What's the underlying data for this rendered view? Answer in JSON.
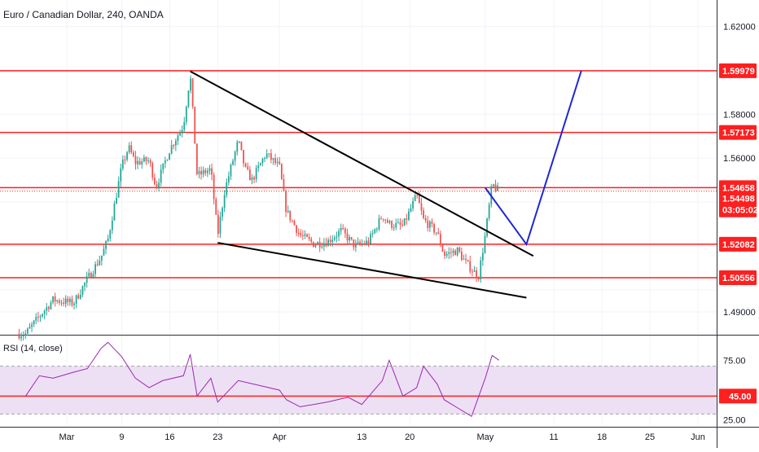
{
  "header": {
    "title": "Euro / Canadian Dollar, 240, OANDA"
  },
  "rsi": {
    "title": "RSI (14, close)"
  },
  "colors": {
    "up": "#26a69a",
    "down": "#ef5350",
    "level": "#ff1f1f",
    "rsi_line": "#9c27b0",
    "rsi_band": "#ede0f5",
    "trend": "#000000",
    "projection": "#1f27d6"
  },
  "chart_data": [
    {
      "type": "candlestick",
      "symbol": "Euro / Canadian Dollar",
      "timeframe": "240",
      "source": "OANDA",
      "x_tick_labels": [
        "Mar",
        "9",
        "16",
        "23",
        "Apr",
        "13",
        "20",
        "May",
        "11",
        "18",
        "25",
        "Jun"
      ],
      "price_tick_labels": [
        "1.62000",
        "1.58000",
        "1.56000",
        "1.49000"
      ],
      "ylim": [
        1.48,
        1.632
      ],
      "horizontal_levels": [
        1.59979,
        1.57173,
        1.54658,
        1.52082,
        1.50556
      ],
      "price_labels": [
        "1.59979",
        "1.57173",
        "1.54658",
        "1.54498",
        "03:05:02",
        "1.52082",
        "1.50556"
      ],
      "last_price": 1.54498,
      "countdown": "03:05:02",
      "trendlines": [
        {
          "name": "upper",
          "from": [
            "Mar 19",
            1.5995
          ],
          "to": [
            "May 8",
            1.5155
          ]
        },
        {
          "name": "lower",
          "from": [
            "Mar 23",
            1.5215
          ],
          "to": [
            "May 7",
            1.4965
          ]
        }
      ],
      "projection": [
        [
          "May 1",
          1.5465
        ],
        [
          "May 7",
          1.5208
        ],
        [
          "May 15",
          1.5998
        ]
      ],
      "price_path": [
        [
          "Feb 24",
          1.48
        ],
        [
          "Feb 26",
          1.488
        ],
        [
          "Feb 28",
          1.4955
        ],
        [
          "Mar 2",
          1.494
        ],
        [
          "Mar 4",
          1.505
        ],
        [
          "Mar 6",
          1.515
        ],
        [
          "Mar 7",
          1.523
        ],
        [
          "Mar 9",
          1.556
        ],
        [
          "Mar 10",
          1.565
        ],
        [
          "Mar 11",
          1.558
        ],
        [
          "Mar 13",
          1.559
        ],
        [
          "Mar 14",
          1.547
        ],
        [
          "Mar 16",
          1.564
        ],
        [
          "Mar 18",
          1.575
        ],
        [
          "Mar 19",
          1.598
        ],
        [
          "Mar 20",
          1.552
        ],
        [
          "Mar 22",
          1.555
        ],
        [
          "Mar 23",
          1.525
        ],
        [
          "Mar 24",
          1.545
        ],
        [
          "Mar 26",
          1.568
        ],
        [
          "Mar 27",
          1.555
        ],
        [
          "Mar 28",
          1.55
        ],
        [
          "Mar 30",
          1.562
        ],
        [
          "Apr 1",
          1.556
        ],
        [
          "Apr 2",
          1.536
        ],
        [
          "Apr 4",
          1.525
        ],
        [
          "Apr 6",
          1.521
        ],
        [
          "Apr 8",
          1.522
        ],
        [
          "Apr 10",
          1.527
        ],
        [
          "Apr 12",
          1.52
        ],
        [
          "Apr 14",
          1.522
        ],
        [
          "Apr 16",
          1.534
        ],
        [
          "Apr 17",
          1.53
        ],
        [
          "Apr 19",
          1.529
        ],
        [
          "Apr 21",
          1.543
        ],
        [
          "Apr 22",
          1.532
        ],
        [
          "Apr 24",
          1.526
        ],
        [
          "Apr 25",
          1.516
        ],
        [
          "Apr 27",
          1.518
        ],
        [
          "Apr 28",
          1.513
        ],
        [
          "Apr 30",
          1.506
        ],
        [
          "May 1",
          1.525
        ],
        [
          "May 2",
          1.548
        ],
        [
          "May 3",
          1.545
        ]
      ]
    },
    {
      "type": "line",
      "name": "RSI (14, close)",
      "ylim": [
        20,
        95
      ],
      "y_tick_labels": [
        "75.00",
        "45.00",
        "25.00"
      ],
      "band": [
        30,
        70
      ],
      "level": 45.0,
      "level_label": "45.00",
      "values": [
        [
          "Feb 24",
          45
        ],
        [
          "Feb 26",
          62
        ],
        [
          "Feb 28",
          60
        ],
        [
          "Mar 2",
          65
        ],
        [
          "Mar 4",
          68
        ],
        [
          "Mar 6",
          85
        ],
        [
          "Mar 7",
          90
        ],
        [
          "Mar 9",
          78
        ],
        [
          "Mar 11",
          60
        ],
        [
          "Mar 13",
          52
        ],
        [
          "Mar 15",
          58
        ],
        [
          "Mar 18",
          62
        ],
        [
          "Mar 19",
          80
        ],
        [
          "Mar 20",
          45
        ],
        [
          "Mar 22",
          60
        ],
        [
          "Mar 23",
          40
        ],
        [
          "Mar 26",
          58
        ],
        [
          "Mar 29",
          54
        ],
        [
          "Apr 1",
          50
        ],
        [
          "Apr 2",
          42
        ],
        [
          "Apr 4",
          36
        ],
        [
          "Apr 8",
          40
        ],
        [
          "Apr 11",
          44
        ],
        [
          "Apr 13",
          38
        ],
        [
          "Apr 16",
          58
        ],
        [
          "Apr 17",
          75
        ],
        [
          "Apr 19",
          45
        ],
        [
          "Apr 21",
          52
        ],
        [
          "Apr 22",
          70
        ],
        [
          "Apr 24",
          55
        ],
        [
          "Apr 25",
          42
        ],
        [
          "Apr 27",
          35
        ],
        [
          "Apr 29",
          28
        ],
        [
          "May 1",
          60
        ],
        [
          "May 2",
          79
        ],
        [
          "May 3",
          75
        ]
      ]
    }
  ]
}
